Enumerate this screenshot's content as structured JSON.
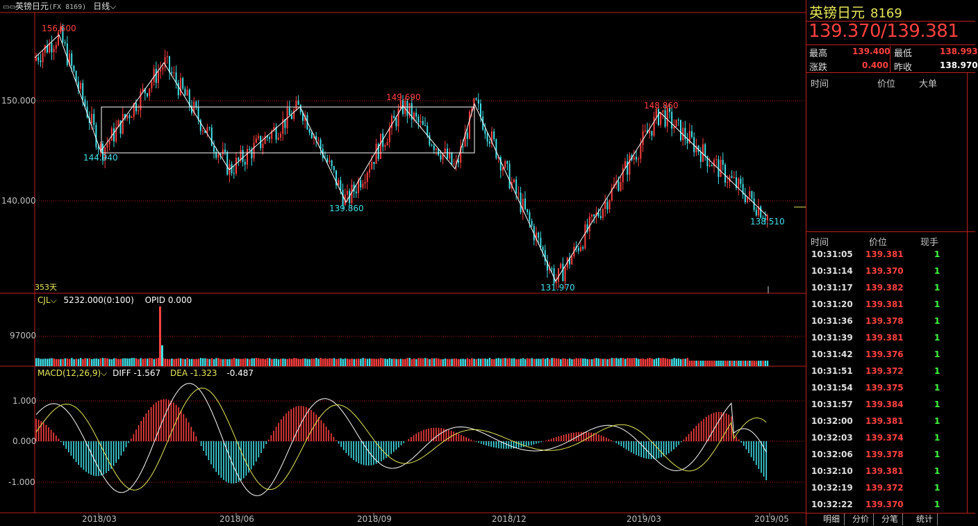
{
  "toolbar": {
    "icon": "window-icon",
    "instrument_name": "英镑日元",
    "instrument_code": "(FX 8169)",
    "period": "日线",
    "period_chevron": "chevron-down-icon"
  },
  "main_chart": {
    "y_labels": [
      "150.000",
      "140.000"
    ],
    "x_labels": [
      "2018/03",
      "2018/06",
      "2018/09",
      "2018/12",
      "2019/03",
      "2019/05"
    ],
    "day_count": "353天",
    "zigzag_labels": [
      {
        "text": "156.600",
        "kind": "high"
      },
      {
        "text": "144.940",
        "kind": "low"
      },
      {
        "text": "139.860",
        "kind": "low"
      },
      {
        "text": "149.690",
        "kind": "high"
      },
      {
        "text": "131.970",
        "kind": "low"
      },
      {
        "text": "148.860",
        "kind": "high"
      },
      {
        "text": "138.510",
        "kind": "low"
      }
    ]
  },
  "volume_panel": {
    "name": "CJL",
    "value": "5232.000(0:100)",
    "opid": "OPID 0.000",
    "y_label": "97000"
  },
  "macd_panel": {
    "name": "MACD(12,26,9)",
    "diff": "DIFF -1.567",
    "dea": "DEA -1.323",
    "macd": "-0.487",
    "y_labels": [
      "1.000",
      "0.000",
      "-1.000"
    ]
  },
  "quote": {
    "title": "英镑日元",
    "code": "8169",
    "bid": "139.370",
    "separator": "/",
    "ask": "139.381",
    "high_label": "最高",
    "high": "139.400",
    "low_label": "最低",
    "low": "138.993",
    "change_label": "涨跌",
    "change": "0.400",
    "prev_label": "昨收",
    "prev": "138.970"
  },
  "big_orders": {
    "headers": [
      "时间",
      "价位",
      "大单"
    ]
  },
  "ticks": {
    "headers": [
      "时间",
      "价位",
      "现手"
    ],
    "rows": [
      {
        "time": "10:31:05",
        "price": "139.381",
        "vol": "1"
      },
      {
        "time": "10:31:14",
        "price": "139.370",
        "vol": "1"
      },
      {
        "time": "10:31:17",
        "price": "139.382",
        "vol": "1"
      },
      {
        "time": "10:31:20",
        "price": "139.381",
        "vol": "1"
      },
      {
        "time": "10:31:36",
        "price": "139.378",
        "vol": "1"
      },
      {
        "time": "10:31:39",
        "price": "139.381",
        "vol": "1"
      },
      {
        "time": "10:31:42",
        "price": "139.376",
        "vol": "1"
      },
      {
        "time": "10:31:51",
        "price": "139.372",
        "vol": "1"
      },
      {
        "time": "10:31:54",
        "price": "139.375",
        "vol": "1"
      },
      {
        "time": "10:31:57",
        "price": "139.384",
        "vol": "1"
      },
      {
        "time": "10:32:00",
        "price": "139.381",
        "vol": "1"
      },
      {
        "time": "10:32:03",
        "price": "139.374",
        "vol": "1"
      },
      {
        "time": "10:32:06",
        "price": "139.378",
        "vol": "1"
      },
      {
        "time": "10:32:10",
        "price": "139.381",
        "vol": "1"
      },
      {
        "time": "10:32:19",
        "price": "139.372",
        "vol": "1"
      },
      {
        "time": "10:32:22",
        "price": "139.370",
        "vol": "1"
      }
    ]
  },
  "tabs": [
    "明细",
    "分价",
    "分笔",
    "统计"
  ],
  "colors": {
    "up": "#ff4040",
    "down": "#40e0e8",
    "grid": "#c02020",
    "accent": "#e8e858"
  }
}
